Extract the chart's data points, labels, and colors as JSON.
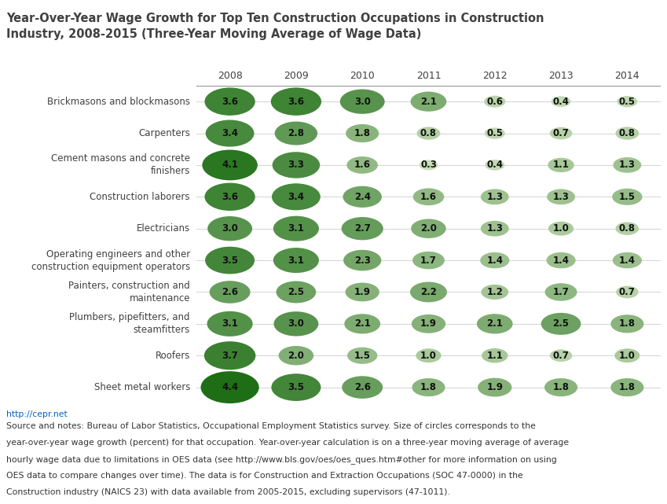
{
  "title": "Year-Over-Year Wage Growth for Top Ten Construction Occupations in Construction\nIndustry, 2008-2015 (Three-Year Moving Average of Wage Data)",
  "years": [
    "2008",
    "2009",
    "2010",
    "2011",
    "2012",
    "2013",
    "2014"
  ],
  "occupations": [
    "Brickmasons and blockmasons",
    "Carpenters",
    "Cement masons and concrete\nfinishers",
    "Construction laborers",
    "Electricians",
    "Operating engineers and other\nconstruction equipment operators",
    "Painters, construction and\nmaintenance",
    "Plumbers, pipefitters, and\nsteamfitters",
    "Roofers",
    "Sheet metal workers"
  ],
  "values": [
    [
      3.6,
      3.6,
      3.0,
      2.1,
      0.6,
      0.4,
      0.5
    ],
    [
      3.4,
      2.8,
      1.8,
      0.8,
      0.5,
      0.7,
      0.8
    ],
    [
      4.1,
      3.3,
      1.6,
      0.3,
      0.4,
      1.1,
      1.3
    ],
    [
      3.6,
      3.4,
      2.4,
      1.6,
      1.3,
      1.3,
      1.5
    ],
    [
      3.0,
      3.1,
      2.7,
      2.0,
      1.3,
      1.0,
      0.8
    ],
    [
      3.5,
      3.1,
      2.3,
      1.7,
      1.4,
      1.4,
      1.4
    ],
    [
      2.6,
      2.5,
      1.9,
      2.2,
      1.2,
      1.7,
      0.7
    ],
    [
      3.1,
      3.0,
      2.1,
      1.9,
      2.1,
      2.5,
      1.8
    ],
    [
      3.7,
      2.0,
      1.5,
      1.0,
      1.1,
      0.7,
      1.0
    ],
    [
      4.4,
      3.5,
      2.6,
      1.8,
      1.9,
      1.8,
      1.8
    ]
  ],
  "background_color": "#ffffff",
  "title_color": "#404040",
  "label_color": "#404040",
  "year_label_color": "#404040",
  "url_color": "#0563c1",
  "url_text": "http://cepr.net",
  "source_line1": "Source and notes: Bureau of Labor Statistics, Occupational Employment Statistics survey. Size of circles corresponds to the",
  "source_line2": "year-over-year wage growth (percent) for that occupation. Year-over-year calculation is on a three-year moving average of average",
  "source_line3": "hourly wage data due to limitations in OES data (see http://www.bls.gov/oes/oes_ques.htm#other for more information on using",
  "source_line4": "OES data to compare changes over time). The data is for Construction and Extraction Occupations (SOC 47-0000) in the",
  "source_line5": "Construction industry (NAICS 23) with data available from 2005-2015, excluding supervisors (47-1011).",
  "min_value": 0.3,
  "max_value": 4.4,
  "dark_green": [
    30,
    110,
    22
  ],
  "light_green": [
    200,
    221,
    184
  ]
}
